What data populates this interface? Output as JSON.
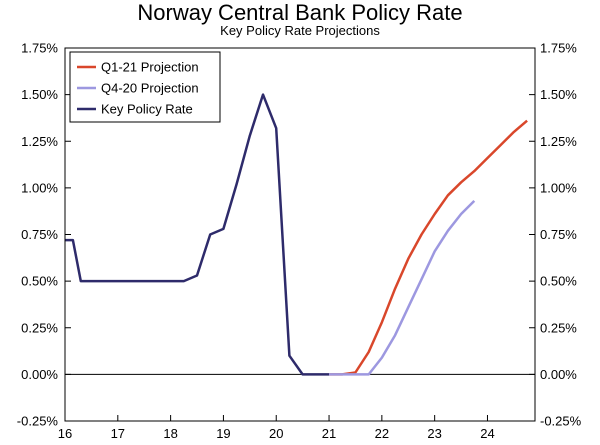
{
  "chart_data": {
    "type": "line",
    "title": "Norway Central Bank Policy Rate",
    "subtitle": "Key Policy Rate Projections",
    "xlabel": "",
    "ylabel": "",
    "xlim": [
      16,
      24.9
    ],
    "ylim": [
      -0.25,
      1.75
    ],
    "x_ticks": [
      16,
      17,
      18,
      19,
      20,
      21,
      22,
      23,
      24
    ],
    "x_tick_labels": [
      "16",
      "17",
      "18",
      "19",
      "20",
      "21",
      "22",
      "23",
      "24"
    ],
    "y_ticks": [
      -0.25,
      0.0,
      0.25,
      0.5,
      0.75,
      1.0,
      1.25,
      1.5,
      1.75
    ],
    "y_tick_labels": [
      "-0.25%",
      "0.00%",
      "0.25%",
      "0.50%",
      "0.75%",
      "1.00%",
      "1.25%",
      "1.50%",
      "1.75%"
    ],
    "zero_line": 0,
    "legend_position": "top-left",
    "series": [
      {
        "name": "Q1-21 Projection",
        "color": "#d9472b",
        "points": [
          [
            21.0,
            0.0
          ],
          [
            21.25,
            0.0
          ],
          [
            21.5,
            0.01
          ],
          [
            21.75,
            0.12
          ],
          [
            22.0,
            0.28
          ],
          [
            22.25,
            0.46
          ],
          [
            22.5,
            0.62
          ],
          [
            22.75,
            0.75
          ],
          [
            23.0,
            0.86
          ],
          [
            23.25,
            0.96
          ],
          [
            23.5,
            1.03
          ],
          [
            23.75,
            1.09
          ],
          [
            24.0,
            1.16
          ],
          [
            24.25,
            1.23
          ],
          [
            24.5,
            1.3
          ],
          [
            24.75,
            1.36
          ]
        ]
      },
      {
        "name": "Q4-20 Projection",
        "color": "#9d98e0",
        "points": [
          [
            21.0,
            0.0
          ],
          [
            21.25,
            0.0
          ],
          [
            21.5,
            0.0
          ],
          [
            21.75,
            0.0
          ],
          [
            22.0,
            0.09
          ],
          [
            22.25,
            0.21
          ],
          [
            22.5,
            0.36
          ],
          [
            22.75,
            0.51
          ],
          [
            23.0,
            0.66
          ],
          [
            23.25,
            0.77
          ],
          [
            23.5,
            0.86
          ],
          [
            23.75,
            0.93
          ]
        ]
      },
      {
        "name": "Key Policy Rate",
        "color": "#2e2b6b",
        "points": [
          [
            16.0,
            0.72
          ],
          [
            16.15,
            0.72
          ],
          [
            16.3,
            0.5
          ],
          [
            18.25,
            0.5
          ],
          [
            18.5,
            0.53
          ],
          [
            18.75,
            0.75
          ],
          [
            19.0,
            0.78
          ],
          [
            19.25,
            1.02
          ],
          [
            19.5,
            1.28
          ],
          [
            19.75,
            1.5
          ],
          [
            20.0,
            1.32
          ],
          [
            20.25,
            0.1
          ],
          [
            20.5,
            0.0
          ],
          [
            21.0,
            0.0
          ]
        ]
      }
    ]
  }
}
